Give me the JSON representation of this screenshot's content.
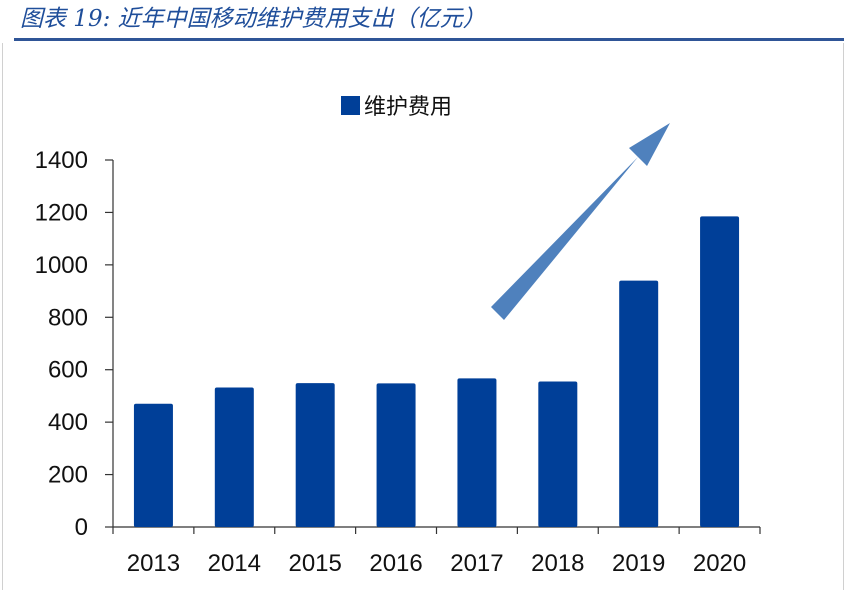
{
  "caption": "图表 19:  近年中国移动维护费用支出（亿元）",
  "colors": {
    "bar": "#003f98",
    "arrow": "#4f81bd",
    "caption": "#1f4e9a",
    "rule": "#2f5597"
  },
  "chart_data": {
    "type": "bar",
    "categories": [
      "2013",
      "2014",
      "2015",
      "2016",
      "2017",
      "2018",
      "2019",
      "2020"
    ],
    "series": [
      {
        "name": "维护费用",
        "values": [
          470,
          532,
          549,
          548,
          567,
          555,
          940,
          1185
        ]
      }
    ],
    "yticks": [
      "0",
      "200",
      "400",
      "600",
      "800",
      "1000",
      "1200",
      "1400"
    ],
    "ylim": [
      0,
      1400
    ],
    "grid": false,
    "legend_position": "top-center",
    "annotation": "upward-trend-arrow"
  }
}
